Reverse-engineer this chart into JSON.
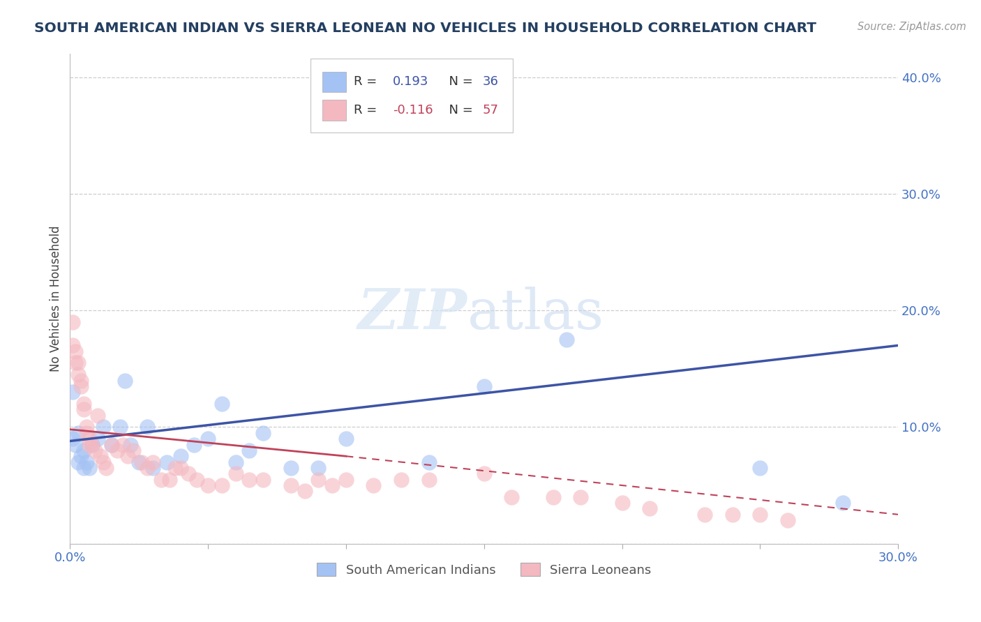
{
  "title": "SOUTH AMERICAN INDIAN VS SIERRA LEONEAN NO VEHICLES IN HOUSEHOLD CORRELATION CHART",
  "source": "Source: ZipAtlas.com",
  "ylabel": "No Vehicles in Household",
  "watermark_zip": "ZIP",
  "watermark_atlas": "atlas",
  "blue_color": "#a4c2f4",
  "pink_color": "#f4b8c1",
  "line_blue": "#3d54a5",
  "line_pink": "#c0425a",
  "axis_label_color": "#4472c4",
  "title_color": "#243f60",
  "xlim": [
    0.0,
    0.3
  ],
  "ylim": [
    0.0,
    0.42
  ],
  "xticks": [
    0.0,
    0.05,
    0.1,
    0.15,
    0.2,
    0.25,
    0.3
  ],
  "yticks": [
    0.0,
    0.1,
    0.2,
    0.3,
    0.4
  ],
  "blue_x": [
    0.001,
    0.001,
    0.002,
    0.003,
    0.003,
    0.004,
    0.005,
    0.005,
    0.006,
    0.007,
    0.008,
    0.01,
    0.012,
    0.015,
    0.018,
    0.02,
    0.022,
    0.025,
    0.028,
    0.03,
    0.035,
    0.04,
    0.045,
    0.05,
    0.055,
    0.06,
    0.065,
    0.07,
    0.08,
    0.09,
    0.1,
    0.13,
    0.15,
    0.18,
    0.25,
    0.28
  ],
  "blue_y": [
    0.13,
    0.09,
    0.085,
    0.095,
    0.07,
    0.075,
    0.08,
    0.065,
    0.07,
    0.065,
    0.085,
    0.09,
    0.1,
    0.085,
    0.1,
    0.14,
    0.085,
    0.07,
    0.1,
    0.065,
    0.07,
    0.075,
    0.085,
    0.09,
    0.12,
    0.07,
    0.08,
    0.095,
    0.065,
    0.065,
    0.09,
    0.07,
    0.135,
    0.175,
    0.065,
    0.035
  ],
  "pink_x": [
    0.001,
    0.001,
    0.002,
    0.002,
    0.003,
    0.003,
    0.004,
    0.004,
    0.005,
    0.005,
    0.006,
    0.006,
    0.007,
    0.007,
    0.008,
    0.009,
    0.01,
    0.011,
    0.012,
    0.013,
    0.015,
    0.017,
    0.019,
    0.021,
    0.023,
    0.026,
    0.028,
    0.03,
    0.033,
    0.036,
    0.038,
    0.04,
    0.043,
    0.046,
    0.05,
    0.055,
    0.06,
    0.065,
    0.07,
    0.08,
    0.085,
    0.09,
    0.095,
    0.1,
    0.11,
    0.12,
    0.13,
    0.15,
    0.16,
    0.175,
    0.185,
    0.2,
    0.21,
    0.23,
    0.24,
    0.25,
    0.26
  ],
  "pink_y": [
    0.19,
    0.17,
    0.165,
    0.155,
    0.155,
    0.145,
    0.14,
    0.135,
    0.12,
    0.115,
    0.1,
    0.095,
    0.09,
    0.085,
    0.085,
    0.08,
    0.11,
    0.075,
    0.07,
    0.065,
    0.085,
    0.08,
    0.085,
    0.075,
    0.08,
    0.07,
    0.065,
    0.07,
    0.055,
    0.055,
    0.065,
    0.065,
    0.06,
    0.055,
    0.05,
    0.05,
    0.06,
    0.055,
    0.055,
    0.05,
    0.045,
    0.055,
    0.05,
    0.055,
    0.05,
    0.055,
    0.055,
    0.06,
    0.04,
    0.04,
    0.04,
    0.035,
    0.03,
    0.025,
    0.025,
    0.025,
    0.02
  ],
  "blue_line_x0": 0.0,
  "blue_line_y0": 0.088,
  "blue_line_x1": 0.3,
  "blue_line_y1": 0.17,
  "pink_line_x0": 0.0,
  "pink_line_y0": 0.098,
  "pink_line_solid_x1": 0.1,
  "pink_line_solid_y1": 0.075,
  "pink_line_x1": 0.3,
  "pink_line_y1": 0.025
}
